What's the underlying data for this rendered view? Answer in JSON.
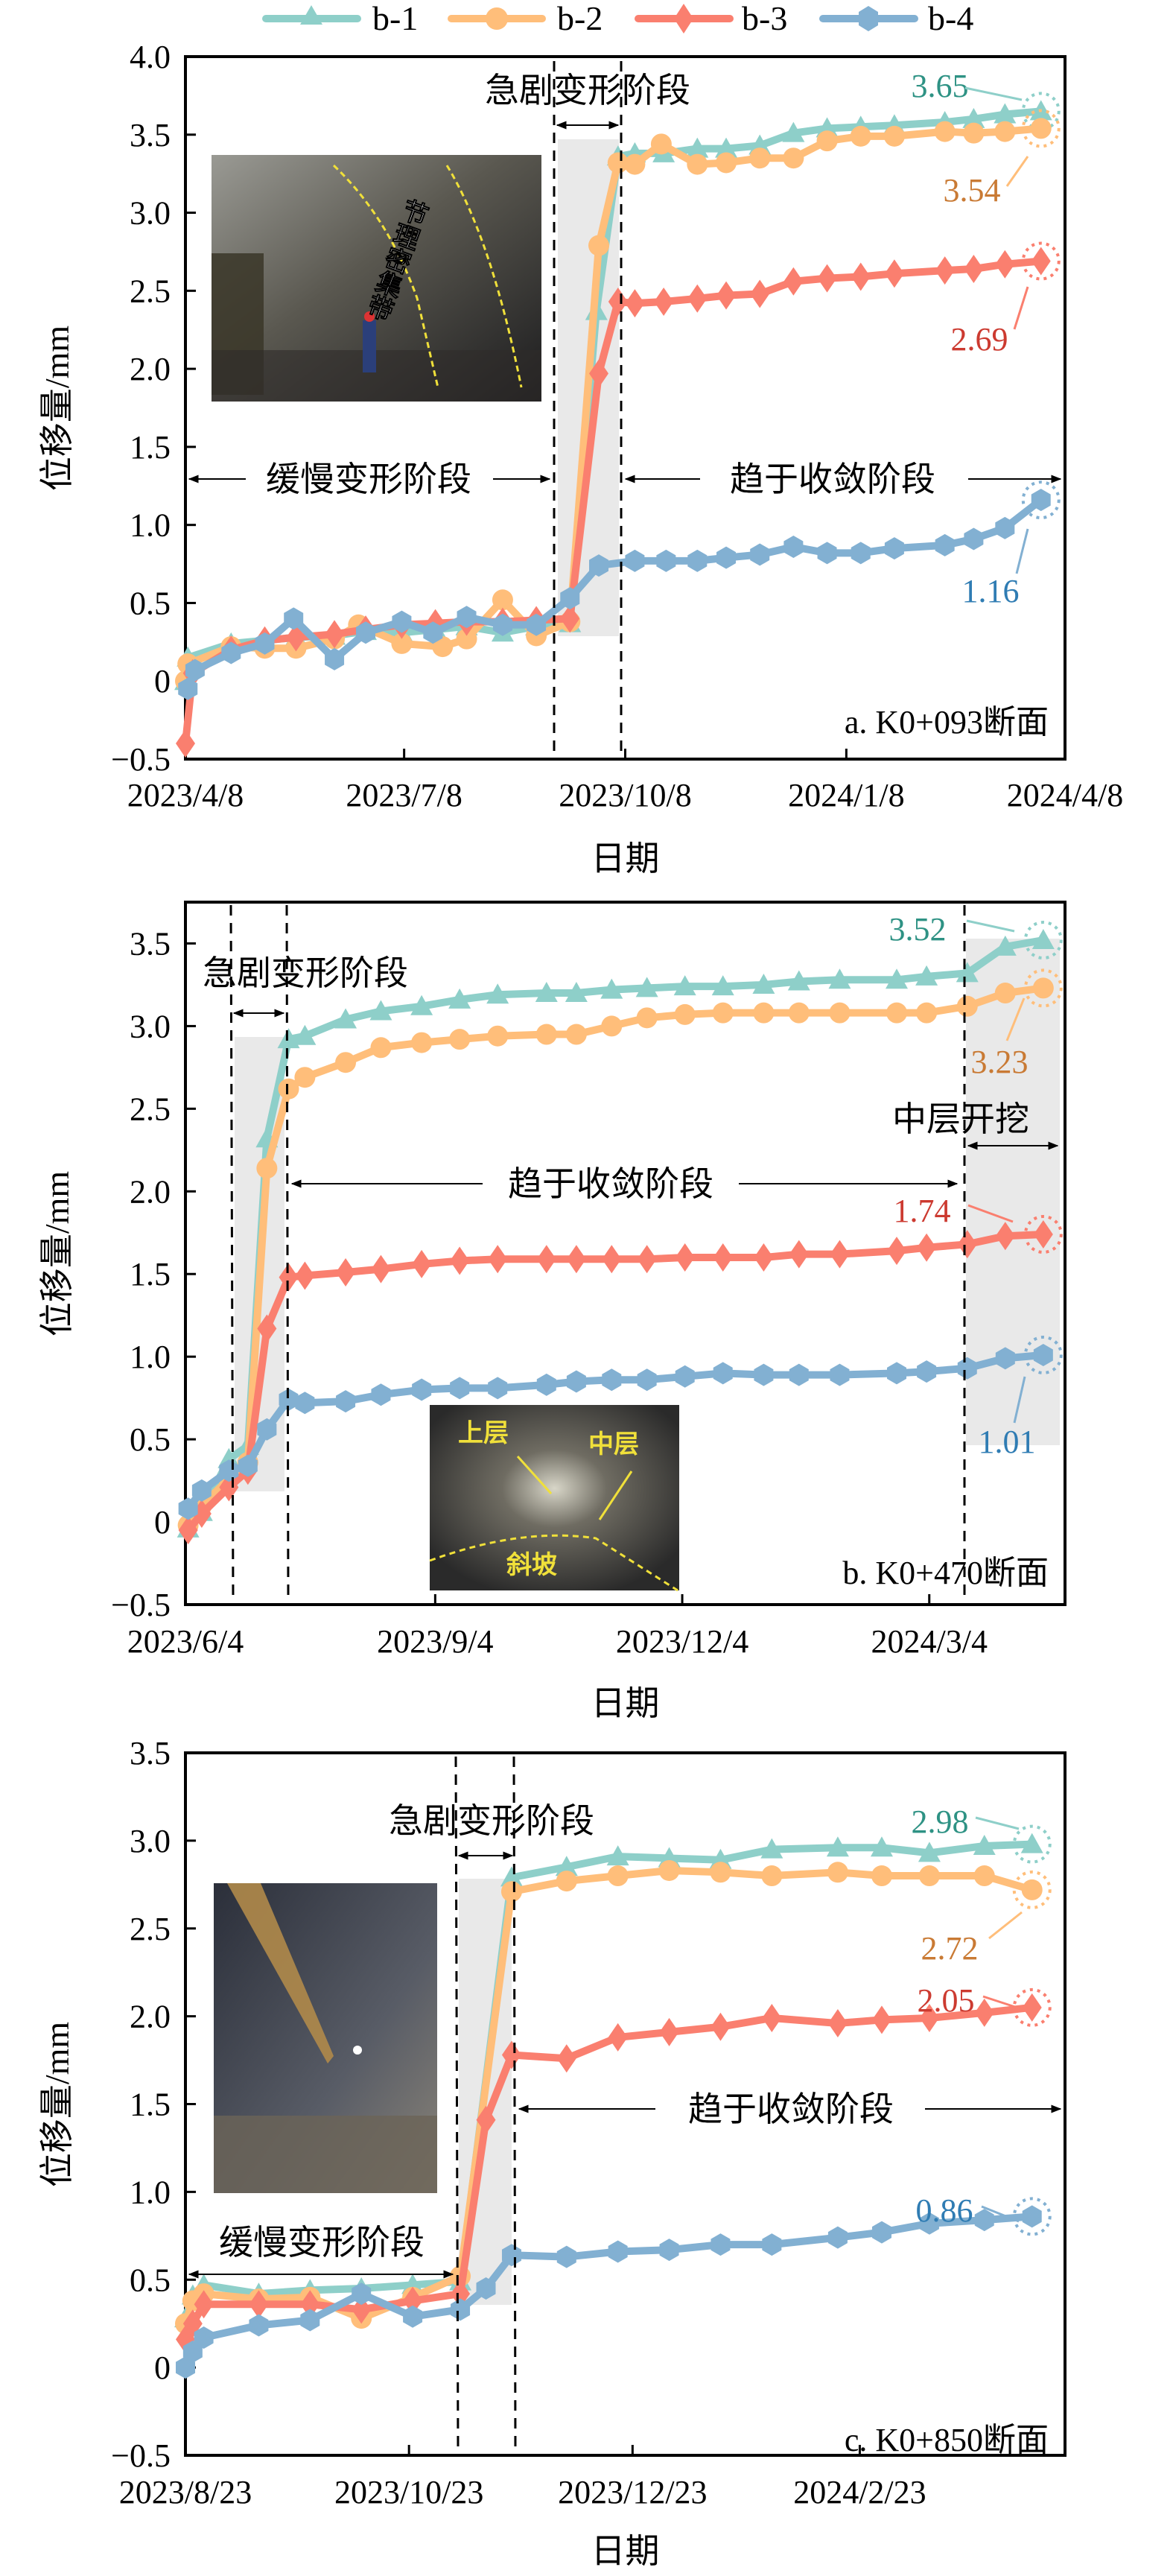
{
  "legend": [
    {
      "name": "b-1",
      "color": "#8ecfc9",
      "marker": "triangle"
    },
    {
      "name": "b-2",
      "color": "#ffbe7a",
      "marker": "circle"
    },
    {
      "name": "b-3",
      "color": "#fa7f6f",
      "marker": "diamond"
    },
    {
      "name": "b-4",
      "color": "#82b0d2",
      "marker": "hexagon"
    }
  ],
  "label_colors": {
    "b-1": "#2e9284",
    "b-2": "#c97a34",
    "b-3": "#cc3a30",
    "b-4": "#2f7cb3"
  },
  "chart_data": [
    {
      "type": "line",
      "panel_label": "a. K0+093断面",
      "xlabel": "日期",
      "ylabel": "位移量/mm",
      "xlim": [
        "2023-04-08",
        "2024-04-08"
      ],
      "ylim": [
        -0.5,
        4.0
      ],
      "x_ticks": [
        "2023-04-08",
        "2023-07-08",
        "2023-10-08",
        "2024-01-08",
        "2024-04-08"
      ],
      "x_tick_labels": [
        "2023/4/8",
        "2023/7/8",
        "2023/10/8",
        "2024/1/8",
        "2024/4/8"
      ],
      "y_ticks": [
        4.0,
        3.5,
        3.0,
        2.5,
        2.0,
        1.5,
        1.0,
        0.5,
        0,
        -0.5
      ],
      "y_tick_labels": [
        "4.0",
        "3.5",
        "3.0",
        "2.5",
        "2.0",
        "1.5",
        "1.0",
        "0.5",
        "0",
        "−0.5"
      ],
      "grid": false,
      "series": [
        {
          "name": "b-1",
          "x": [
            "2023-04-08",
            "2023-04-09",
            "2023-04-27",
            "2023-05-11",
            "2023-05-24",
            "2023-06-09",
            "2023-06-22",
            "2023-07-07",
            "2023-07-21",
            "2023-08-03",
            "2023-08-18",
            "2023-09-01",
            "2023-09-15",
            "2023-09-26",
            "2023-10-05",
            "2023-10-12",
            "2023-10-24",
            "2023-11-07",
            "2023-11-19",
            "2023-12-03",
            "2023-12-17",
            "2023-12-31",
            "2024-01-14",
            "2024-01-28",
            "2024-02-18",
            "2024-03-01",
            "2024-03-14",
            "2024-03-29"
          ],
          "values": [
            0.0,
            0.15,
            0.24,
            0.26,
            0.28,
            0.29,
            0.32,
            0.31,
            0.33,
            0.35,
            0.31,
            0.35,
            0.37,
            2.37,
            3.36,
            3.38,
            3.38,
            3.41,
            3.41,
            3.43,
            3.51,
            3.54,
            3.55,
            3.56,
            3.58,
            3.6,
            3.63,
            3.65
          ]
        },
        {
          "name": "b-2",
          "x": [
            "2023-04-08",
            "2023-04-09",
            "2023-04-27",
            "2023-05-11",
            "2023-05-24",
            "2023-06-09",
            "2023-06-19",
            "2023-07-07",
            "2023-07-24",
            "2023-08-03",
            "2023-08-18",
            "2023-09-01",
            "2023-09-15",
            "2023-09-27",
            "2023-10-05",
            "2023-10-12",
            "2023-10-23",
            "2023-11-07",
            "2023-11-19",
            "2023-12-03",
            "2023-12-17",
            "2023-12-31",
            "2024-01-14",
            "2024-01-28",
            "2024-02-18",
            "2024-03-01",
            "2024-03-14",
            "2024-03-29"
          ],
          "values": [
            0.0,
            0.11,
            0.22,
            0.21,
            0.21,
            0.27,
            0.36,
            0.24,
            0.22,
            0.27,
            0.52,
            0.29,
            0.38,
            2.79,
            3.32,
            3.31,
            3.44,
            3.31,
            3.32,
            3.35,
            3.35,
            3.46,
            3.49,
            3.49,
            3.52,
            3.51,
            3.52,
            3.54
          ]
        },
        {
          "name": "b-3",
          "x": [
            "2023-04-08",
            "2023-04-11",
            "2023-04-27",
            "2023-05-11",
            "2023-05-24",
            "2023-06-09",
            "2023-06-22",
            "2023-07-07",
            "2023-07-21",
            "2023-08-03",
            "2023-08-18",
            "2023-09-01",
            "2023-09-15",
            "2023-09-27",
            "2023-10-05",
            "2023-10-12",
            "2023-10-24",
            "2023-11-07",
            "2023-11-19",
            "2023-12-03",
            "2023-12-17",
            "2023-12-31",
            "2024-01-14",
            "2024-01-28",
            "2024-02-18",
            "2024-03-01",
            "2024-03-14",
            "2024-03-29"
          ],
          "values": [
            -0.4,
            0.05,
            0.2,
            0.26,
            0.28,
            0.3,
            0.33,
            0.36,
            0.37,
            0.38,
            0.38,
            0.39,
            0.4,
            1.97,
            2.43,
            2.42,
            2.43,
            2.45,
            2.47,
            2.48,
            2.56,
            2.58,
            2.59,
            2.61,
            2.63,
            2.64,
            2.67,
            2.69
          ]
        },
        {
          "name": "b-4",
          "x": [
            "2023-04-09",
            "2023-04-12",
            "2023-04-27",
            "2023-05-11",
            "2023-05-23",
            "2023-06-09",
            "2023-06-22",
            "2023-07-07",
            "2023-07-20",
            "2023-08-03",
            "2023-08-18",
            "2023-09-01",
            "2023-09-15",
            "2023-09-27",
            "2023-10-12",
            "2023-10-25",
            "2023-11-07",
            "2023-11-19",
            "2023-12-03",
            "2023-12-17",
            "2023-12-31",
            "2024-01-14",
            "2024-01-28",
            "2024-02-18",
            "2024-03-01",
            "2024-03-14",
            "2024-03-29"
          ],
          "values": [
            -0.05,
            0.07,
            0.18,
            0.24,
            0.4,
            0.14,
            0.31,
            0.38,
            0.31,
            0.41,
            0.36,
            0.36,
            0.53,
            0.74,
            0.77,
            0.77,
            0.77,
            0.79,
            0.81,
            0.86,
            0.82,
            0.82,
            0.85,
            0.87,
            0.91,
            0.98,
            1.16
          ]
        }
      ],
      "end_labels": [
        "3.65",
        "3.54",
        "2.69",
        "1.16"
      ],
      "stage_boundaries": [
        "2023-09-14",
        "2023-10-11"
      ],
      "stages": [
        {
          "label": "缓慢变形阶段",
          "kind": "slow"
        },
        {
          "label": "急剧变形阶段",
          "kind": "rapid"
        },
        {
          "label": "趋于收敛阶段",
          "kind": "converge"
        }
      ],
      "inset_photo": {
        "caption": "节理密集带",
        "description": "tunnel face with drilling jumbo and worker"
      }
    },
    {
      "type": "line",
      "panel_label": "b. K0+470断面",
      "xlabel": "日期",
      "ylabel": "位移量/mm",
      "xlim": [
        "2023-06-04",
        "2024-04-23"
      ],
      "ylim": [
        -0.5,
        3.75
      ],
      "x_ticks": [
        "2023-06-04",
        "2023-09-04",
        "2023-12-04",
        "2024-03-04"
      ],
      "x_tick_labels": [
        "2023/6/4",
        "2023/9/4",
        "2023/12/4",
        "2024/3/4"
      ],
      "y_ticks": [
        3.5,
        3.0,
        2.5,
        2.0,
        1.5,
        1.0,
        0.5,
        0,
        -0.5
      ],
      "y_tick_labels": [
        "3.5",
        "3.0",
        "2.5",
        "2.0",
        "1.5",
        "1.0",
        "0.5",
        "0",
        "−0.5"
      ],
      "grid": false,
      "series": [
        {
          "name": "b-1",
          "x": [
            "2023-06-05",
            "2023-06-10",
            "2023-06-20",
            "2023-06-27",
            "2023-07-04",
            "2023-07-12",
            "2023-07-18",
            "2023-08-02",
            "2023-08-15",
            "2023-08-30",
            "2023-09-13",
            "2023-09-27",
            "2023-10-15",
            "2023-10-26",
            "2023-11-08",
            "2023-11-21",
            "2023-12-05",
            "2023-12-19",
            "2024-01-03",
            "2024-01-16",
            "2024-01-31",
            "2024-02-21",
            "2024-03-03",
            "2024-03-18",
            "2024-04-01",
            "2024-04-15"
          ],
          "values": [
            -0.04,
            0.06,
            0.38,
            0.46,
            2.32,
            2.92,
            2.94,
            3.04,
            3.09,
            3.12,
            3.16,
            3.19,
            3.2,
            3.2,
            3.22,
            3.23,
            3.24,
            3.24,
            3.25,
            3.27,
            3.28,
            3.28,
            3.3,
            3.32,
            3.48,
            3.52
          ]
        },
        {
          "name": "b-2",
          "x": [
            "2023-06-05",
            "2023-06-10",
            "2023-06-20",
            "2023-06-27",
            "2023-07-04",
            "2023-07-12",
            "2023-07-18",
            "2023-08-02",
            "2023-08-15",
            "2023-08-30",
            "2023-09-13",
            "2023-09-27",
            "2023-10-15",
            "2023-10-26",
            "2023-11-08",
            "2023-11-21",
            "2023-12-05",
            "2023-12-19",
            "2024-01-03",
            "2024-01-16",
            "2024-01-31",
            "2024-02-21",
            "2024-03-03",
            "2024-03-18",
            "2024-04-01",
            "2024-04-15"
          ],
          "values": [
            -0.02,
            0.1,
            0.26,
            0.36,
            2.14,
            2.62,
            2.69,
            2.78,
            2.87,
            2.9,
            2.92,
            2.94,
            2.95,
            2.95,
            3.0,
            3.05,
            3.07,
            3.08,
            3.08,
            3.08,
            3.08,
            3.08,
            3.08,
            3.12,
            3.2,
            3.23
          ]
        },
        {
          "name": "b-3",
          "x": [
            "2023-06-05",
            "2023-06-10",
            "2023-06-20",
            "2023-06-27",
            "2023-07-04",
            "2023-07-12",
            "2023-07-18",
            "2023-08-02",
            "2023-08-15",
            "2023-08-30",
            "2023-09-13",
            "2023-09-27",
            "2023-10-15",
            "2023-10-26",
            "2023-11-08",
            "2023-11-21",
            "2023-12-05",
            "2023-12-19",
            "2024-01-03",
            "2024-01-16",
            "2024-01-31",
            "2024-02-21",
            "2024-03-03",
            "2024-03-18",
            "2024-04-01",
            "2024-04-15"
          ],
          "values": [
            -0.05,
            0.05,
            0.21,
            0.31,
            1.17,
            1.48,
            1.49,
            1.51,
            1.53,
            1.56,
            1.58,
            1.59,
            1.59,
            1.59,
            1.59,
            1.59,
            1.6,
            1.6,
            1.6,
            1.62,
            1.62,
            1.64,
            1.66,
            1.68,
            1.73,
            1.74
          ]
        },
        {
          "name": "b-4",
          "x": [
            "2023-06-05",
            "2023-06-10",
            "2023-06-20",
            "2023-06-27",
            "2023-07-04",
            "2023-07-12",
            "2023-07-18",
            "2023-08-02",
            "2023-08-15",
            "2023-08-30",
            "2023-09-13",
            "2023-09-27",
            "2023-10-15",
            "2023-10-26",
            "2023-11-08",
            "2023-11-21",
            "2023-12-05",
            "2023-12-19",
            "2024-01-03",
            "2024-01-16",
            "2024-01-31",
            "2024-02-21",
            "2024-03-03",
            "2024-03-18",
            "2024-04-01",
            "2024-04-15"
          ],
          "values": [
            0.08,
            0.19,
            0.31,
            0.34,
            0.56,
            0.74,
            0.72,
            0.73,
            0.77,
            0.8,
            0.81,
            0.81,
            0.83,
            0.85,
            0.86,
            0.86,
            0.88,
            0.9,
            0.89,
            0.89,
            0.89,
            0.9,
            0.91,
            0.93,
            0.99,
            1.01
          ]
        }
      ],
      "end_labels": [
        "3.52",
        "3.23",
        "1.74",
        "1.01"
      ],
      "stage_boundaries": [
        "2023-06-21",
        "2023-07-12",
        "2024-03-18"
      ],
      "stages": [
        {
          "label": "急剧变形阶段",
          "kind": "rapid"
        },
        {
          "label": "趋于收敛阶段",
          "kind": "converge"
        },
        {
          "label": "中层开挖",
          "kind": "middle-excavation"
        }
      ],
      "inset_photo": {
        "labels": [
          "上层",
          "中层",
          "斜坡"
        ],
        "description": "tunnel bench excavation"
      }
    },
    {
      "type": "line",
      "panel_label": "c. K0+850断面",
      "xlabel": "日期",
      "ylabel": "位移量/mm",
      "xlim": [
        "2023-08-23",
        "2024-04-19"
      ],
      "ylim": [
        -0.5,
        3.5
      ],
      "x_ticks": [
        "2023-08-23",
        "2023-10-23",
        "2023-12-23",
        "2024-02-23"
      ],
      "x_tick_labels": [
        "2023/8/23",
        "2023/10/23",
        "2023/12/23",
        "2024/2/23"
      ],
      "y_ticks": [
        3.5,
        3.0,
        2.5,
        2.0,
        1.5,
        1.0,
        0.5,
        0,
        -0.5
      ],
      "y_tick_labels": [
        "3.5",
        "3.0",
        "2.5",
        "2.0",
        "1.5",
        "1.0",
        "0.5",
        "0",
        "−0.5"
      ],
      "grid": false,
      "series": [
        {
          "name": "b-1",
          "x": [
            "2023-08-23",
            "2023-08-25",
            "2023-08-28",
            "2023-09-12",
            "2023-09-26",
            "2023-10-10",
            "2023-10-24",
            "2023-11-06",
            "2023-11-20",
            "2023-12-05",
            "2023-12-19",
            "2024-01-02",
            "2024-01-16",
            "2024-01-30",
            "2024-02-17",
            "2024-02-29",
            "2024-03-13",
            "2024-03-28",
            "2024-04-10"
          ],
          "values": [
            0.28,
            0.41,
            0.47,
            0.42,
            0.44,
            0.45,
            0.47,
            0.49,
            2.79,
            2.85,
            2.91,
            2.9,
            2.89,
            2.95,
            2.96,
            2.96,
            2.93,
            2.97,
            2.98
          ]
        },
        {
          "name": "b-2",
          "x": [
            "2023-08-23",
            "2023-08-25",
            "2023-08-28",
            "2023-09-12",
            "2023-09-26",
            "2023-10-10",
            "2023-10-24",
            "2023-11-06",
            "2023-11-20",
            "2023-12-05",
            "2023-12-19",
            "2024-01-02",
            "2024-01-16",
            "2024-01-30",
            "2024-02-17",
            "2024-02-29",
            "2024-03-13",
            "2024-03-28",
            "2024-04-10"
          ],
          "values": [
            0.25,
            0.38,
            0.42,
            0.39,
            0.4,
            0.28,
            0.4,
            0.52,
            2.71,
            2.77,
            2.8,
            2.83,
            2.82,
            2.8,
            2.82,
            2.8,
            2.8,
            2.8,
            2.72
          ]
        },
        {
          "name": "b-3",
          "x": [
            "2023-08-23",
            "2023-08-25",
            "2023-08-28",
            "2023-09-12",
            "2023-09-26",
            "2023-10-10",
            "2023-10-24",
            "2023-11-06",
            "2023-11-13",
            "2023-11-20",
            "2023-12-05",
            "2023-12-19",
            "2024-01-02",
            "2024-01-16",
            "2024-01-30",
            "2024-02-17",
            "2024-02-29",
            "2024-03-13",
            "2024-03-28",
            "2024-04-10"
          ],
          "values": [
            0.16,
            0.25,
            0.36,
            0.36,
            0.36,
            0.33,
            0.38,
            0.42,
            1.41,
            1.78,
            1.76,
            1.88,
            1.91,
            1.94,
            1.99,
            1.96,
            1.98,
            1.99,
            2.02,
            2.05
          ]
        },
        {
          "name": "b-4",
          "x": [
            "2023-08-23",
            "2023-08-25",
            "2023-08-28",
            "2023-09-12",
            "2023-09-26",
            "2023-10-10",
            "2023-10-24",
            "2023-11-06",
            "2023-11-13",
            "2023-11-20",
            "2023-12-05",
            "2023-12-19",
            "2024-01-02",
            "2024-01-16",
            "2024-01-30",
            "2024-02-17",
            "2024-02-29",
            "2024-03-13",
            "2024-03-28",
            "2024-04-10"
          ],
          "values": [
            0.0,
            0.09,
            0.17,
            0.24,
            0.27,
            0.42,
            0.29,
            0.33,
            0.45,
            0.64,
            0.63,
            0.66,
            0.67,
            0.7,
            0.7,
            0.74,
            0.77,
            0.82,
            0.84,
            0.86
          ]
        }
      ],
      "end_labels": [
        "2.98",
        "2.72",
        "2.05",
        "0.86"
      ],
      "stage_boundaries": [
        "2023-11-05",
        "2023-11-21"
      ],
      "stages": [
        {
          "label": "缓慢变形阶段",
          "kind": "slow"
        },
        {
          "label": "急剧变形阶段",
          "kind": "rapid"
        },
        {
          "label": "趋于收敛阶段",
          "kind": "converge"
        }
      ],
      "inset_photo": {
        "description": "tunnel with ventilation duct"
      }
    }
  ]
}
